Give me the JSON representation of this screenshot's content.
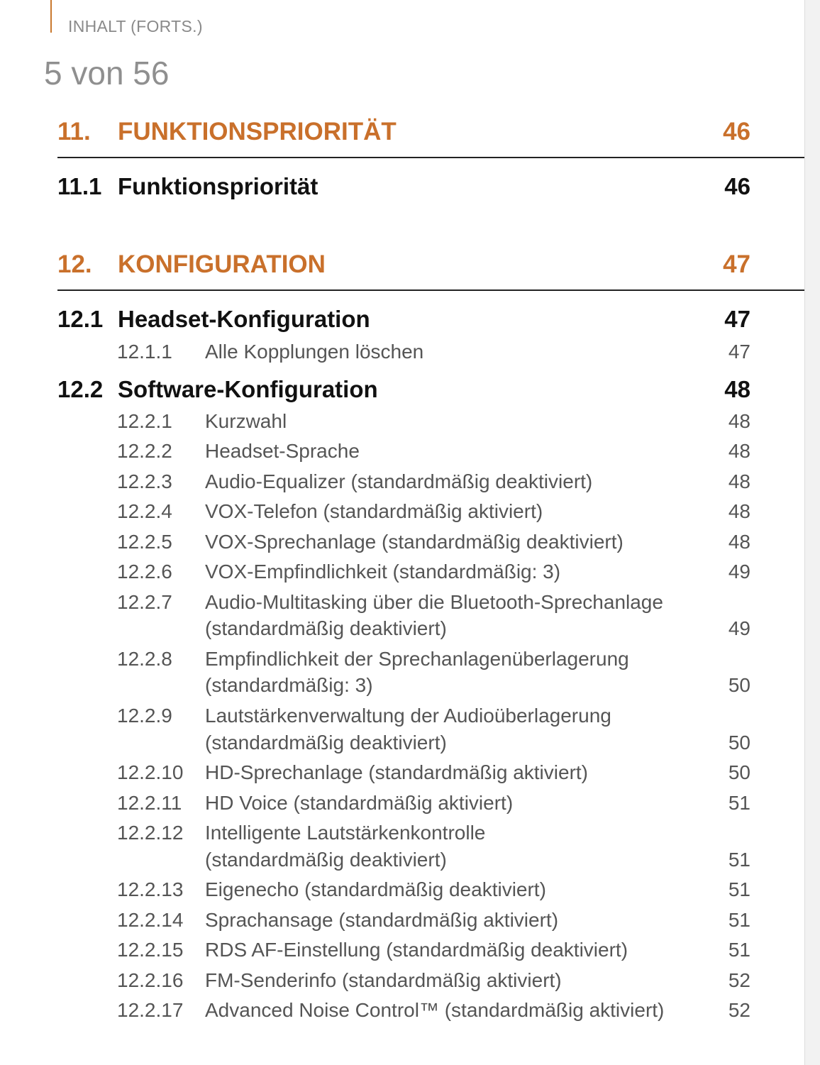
{
  "running_head": "INHALT (FORTS.)",
  "page_counter": "5 von 56",
  "chapters": [
    {
      "number": "11.",
      "title": "FUNKTIONSPRIORITÄT",
      "page": "46"
    },
    {
      "number": "12.",
      "title": "KONFIGURATION",
      "page": "47"
    }
  ],
  "sections": [
    {
      "number": "11.1",
      "title": "Funktionspriorität",
      "page": "46"
    },
    {
      "number": "12.1",
      "title": "Headset-Konfiguration",
      "page": "47"
    },
    {
      "number": "12.2",
      "title": "Software-Konfiguration",
      "page": "48"
    }
  ],
  "subsections": [
    {
      "number": "12.1.1",
      "title": "Alle Kopplungen löschen",
      "page": "47"
    },
    {
      "number": "12.2.1",
      "title": "Kurzwahl",
      "page": "48"
    },
    {
      "number": "12.2.2",
      "title": "Headset-Sprache",
      "page": "48"
    },
    {
      "number": "12.2.3",
      "title": "Audio-Equalizer (standardmäßig deaktiviert)",
      "page": "48"
    },
    {
      "number": "12.2.4",
      "title": "VOX-Telefon (standardmäßig aktiviert)",
      "page": "48"
    },
    {
      "number": "12.2.5",
      "title": "VOX-Sprechanlage (standardmäßig deaktiviert)",
      "page": "48"
    },
    {
      "number": "12.2.6",
      "title": "VOX-Empfindlichkeit (standardmäßig: 3)",
      "page": "49"
    },
    {
      "number": "12.2.7",
      "title": "Audio-Multitasking über die Bluetooth-Sprechanlage",
      "title2": "(standardmäßig deaktiviert)",
      "page": "49"
    },
    {
      "number": "12.2.8",
      "title": "Empfindlichkeit der Sprechanlagenüberlagerung",
      "title2": "(standardmäßig: 3)",
      "page": "50"
    },
    {
      "number": "12.2.9",
      "title": "Lautstärkenverwaltung der Audioüberlagerung",
      "title2": "(standardmäßig deaktiviert)",
      "page": "50"
    },
    {
      "number": "12.2.10",
      "title": "HD-Sprechanlage (standardmäßig aktiviert)",
      "page": "50"
    },
    {
      "number": "12.2.11",
      "title": "HD Voice (standardmäßig aktiviert)",
      "page": "51"
    },
    {
      "number": "12.2.12",
      "title": "Intelligente Lautstärkenkontrolle",
      "title2": "(standardmäßig deaktiviert)",
      "page": "51"
    },
    {
      "number": "12.2.13",
      "title": "Eigenecho (standardmäßig deaktiviert)",
      "page": "51"
    },
    {
      "number": "12.2.14",
      "title": "Sprachansage (standardmäßig aktiviert)",
      "page": "51"
    },
    {
      "number": "12.2.15",
      "title": "RDS AF-Einstellung (standardmäßig deaktiviert)",
      "page": "51"
    },
    {
      "number": "12.2.16",
      "title": "FM-Senderinfo (standardmäßig aktiviert)",
      "page": "52"
    },
    {
      "number": "12.2.17",
      "title": "Advanced Noise Control™ (standardmäßig aktiviert)",
      "page": "52"
    }
  ],
  "colors": {
    "accent": "#c9702b",
    "heading": "#111111",
    "body": "#555555"
  }
}
